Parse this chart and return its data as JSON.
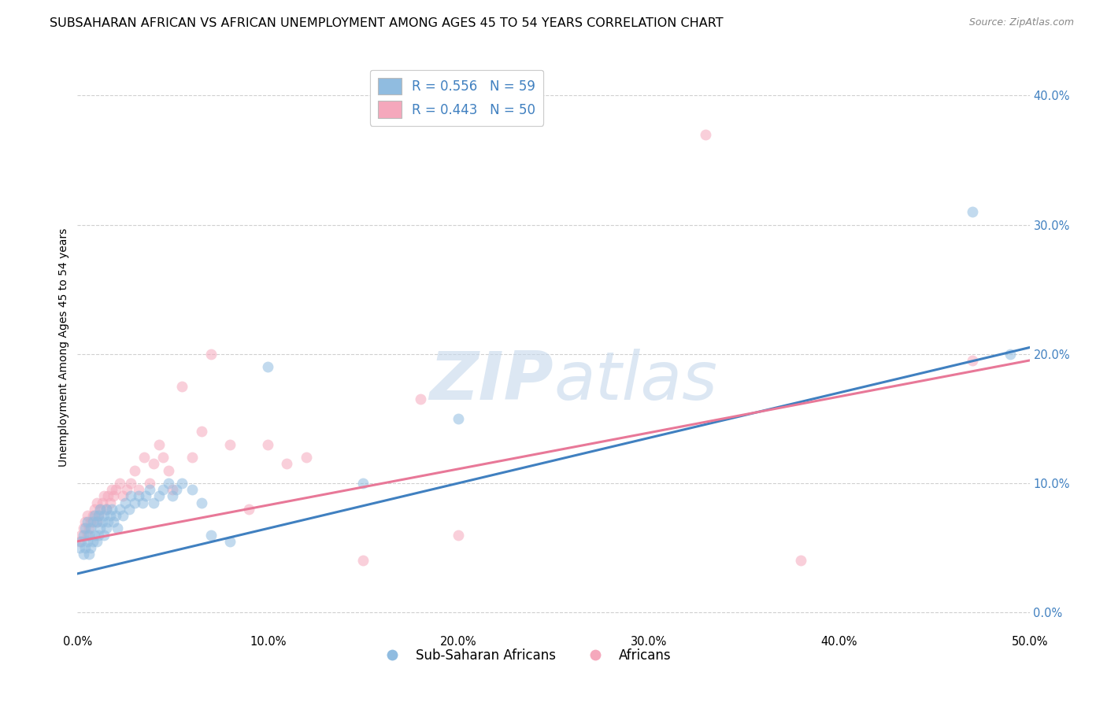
{
  "title": "SUBSAHARAN AFRICAN VS AFRICAN UNEMPLOYMENT AMONG AGES 45 TO 54 YEARS CORRELATION CHART",
  "source": "Source: ZipAtlas.com",
  "ylabel_label": "Unemployment Among Ages 45 to 54 years",
  "xlim": [
    0,
    0.5
  ],
  "ylim": [
    -0.015,
    0.425
  ],
  "blue_scatter_x": [
    0.001,
    0.002,
    0.003,
    0.003,
    0.004,
    0.004,
    0.005,
    0.005,
    0.006,
    0.006,
    0.007,
    0.007,
    0.008,
    0.008,
    0.009,
    0.009,
    0.01,
    0.01,
    0.011,
    0.011,
    0.012,
    0.012,
    0.013,
    0.014,
    0.014,
    0.015,
    0.015,
    0.016,
    0.017,
    0.018,
    0.019,
    0.02,
    0.021,
    0.022,
    0.024,
    0.025,
    0.027,
    0.028,
    0.03,
    0.032,
    0.034,
    0.036,
    0.038,
    0.04,
    0.043,
    0.045,
    0.048,
    0.05,
    0.052,
    0.055,
    0.06,
    0.065,
    0.07,
    0.08,
    0.1,
    0.15,
    0.2,
    0.47,
    0.49
  ],
  "blue_scatter_y": [
    0.05,
    0.055,
    0.045,
    0.06,
    0.05,
    0.065,
    0.055,
    0.07,
    0.045,
    0.06,
    0.05,
    0.065,
    0.055,
    0.07,
    0.06,
    0.075,
    0.055,
    0.07,
    0.06,
    0.075,
    0.065,
    0.08,
    0.07,
    0.06,
    0.075,
    0.065,
    0.08,
    0.07,
    0.075,
    0.08,
    0.07,
    0.075,
    0.065,
    0.08,
    0.075,
    0.085,
    0.08,
    0.09,
    0.085,
    0.09,
    0.085,
    0.09,
    0.095,
    0.085,
    0.09,
    0.095,
    0.1,
    0.09,
    0.095,
    0.1,
    0.095,
    0.085,
    0.06,
    0.055,
    0.19,
    0.1,
    0.15,
    0.31,
    0.2
  ],
  "pink_scatter_x": [
    0.001,
    0.002,
    0.003,
    0.004,
    0.005,
    0.005,
    0.006,
    0.007,
    0.008,
    0.009,
    0.01,
    0.01,
    0.011,
    0.012,
    0.013,
    0.014,
    0.015,
    0.016,
    0.017,
    0.018,
    0.019,
    0.02,
    0.022,
    0.024,
    0.026,
    0.028,
    0.03,
    0.032,
    0.035,
    0.038,
    0.04,
    0.043,
    0.045,
    0.048,
    0.05,
    0.055,
    0.06,
    0.065,
    0.07,
    0.08,
    0.09,
    0.1,
    0.11,
    0.12,
    0.15,
    0.18,
    0.2,
    0.33,
    0.38,
    0.47
  ],
  "pink_scatter_y": [
    0.055,
    0.06,
    0.065,
    0.07,
    0.06,
    0.075,
    0.065,
    0.07,
    0.075,
    0.08,
    0.07,
    0.085,
    0.075,
    0.08,
    0.085,
    0.09,
    0.08,
    0.09,
    0.085,
    0.095,
    0.09,
    0.095,
    0.1,
    0.09,
    0.095,
    0.1,
    0.11,
    0.095,
    0.12,
    0.1,
    0.115,
    0.13,
    0.12,
    0.11,
    0.095,
    0.175,
    0.12,
    0.14,
    0.2,
    0.13,
    0.08,
    0.13,
    0.115,
    0.12,
    0.04,
    0.165,
    0.06,
    0.37,
    0.04,
    0.195
  ],
  "blue_line_x": [
    0.0,
    0.5
  ],
  "blue_line_y": [
    0.03,
    0.205
  ],
  "pink_line_x": [
    0.0,
    0.5
  ],
  "pink_line_y": [
    0.055,
    0.195
  ],
  "scatter_size": 100,
  "scatter_alpha": 0.55,
  "blue_color": "#90bce0",
  "pink_color": "#f5a8bc",
  "blue_line_color": "#4080c0",
  "pink_line_color": "#e87898",
  "grid_color": "#d0d0d0",
  "background_color": "#ffffff",
  "title_fontsize": 11.5,
  "label_fontsize": 10,
  "tick_fontsize": 10.5,
  "legend_fontsize": 12,
  "legend_label_color": "#4080c0"
}
